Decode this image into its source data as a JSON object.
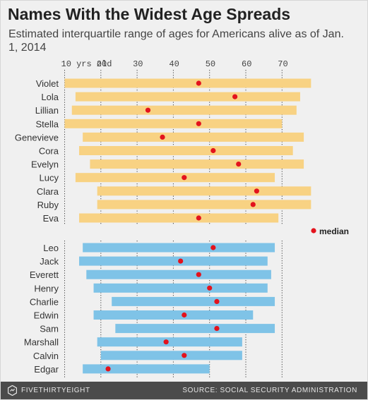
{
  "title": "Names With the Widest Age Spreads",
  "subtitle": "Estimated interquartile range of ages for Americans alive as of Jan. 1, 2014",
  "footer": {
    "brand": "FIVETHIRTYEIGHT",
    "brand_icon": "fivethirtyeight-logo-icon",
    "source": "SOURCE: SOCIAL SECURITY ADMINISTRATION"
  },
  "chart_data": {
    "type": "range-dot",
    "title": "Names With the Widest Age Spreads",
    "subtitle": "Estimated interquartile range of ages for Americans alive as of Jan. 1, 2014",
    "x_unit": "yrs old",
    "xlim": [
      10,
      78
    ],
    "ticks": [
      10,
      20,
      30,
      40,
      50,
      60,
      70
    ],
    "tick_labels": [
      "10 yrs old",
      "20",
      "30",
      "40",
      "50",
      "60",
      "70"
    ],
    "grid": "vertical dotted",
    "legend": {
      "label": "median",
      "placement": "right, between groups"
    },
    "colors": {
      "female_bar": "#f8d283",
      "male_bar": "#7fc3e7",
      "median": "#e3131d",
      "grid": "#444444"
    },
    "series": [
      {
        "group": "female",
        "items": [
          {
            "name": "Violet",
            "q1": 10,
            "q3": 78,
            "median": 47
          },
          {
            "name": "Lola",
            "q1": 13,
            "q3": 75,
            "median": 57
          },
          {
            "name": "Lillian",
            "q1": 12,
            "q3": 74,
            "median": 33
          },
          {
            "name": "Stella",
            "q1": 10,
            "q3": 70,
            "median": 47
          },
          {
            "name": "Genevieve",
            "q1": 15,
            "q3": 76,
            "median": 37
          },
          {
            "name": "Cora",
            "q1": 14,
            "q3": 73,
            "median": 51
          },
          {
            "name": "Evelyn",
            "q1": 17,
            "q3": 76,
            "median": 58
          },
          {
            "name": "Lucy",
            "q1": 13,
            "q3": 68,
            "median": 43
          },
          {
            "name": "Clara",
            "q1": 19,
            "q3": 78,
            "median": 63
          },
          {
            "name": "Ruby",
            "q1": 19,
            "q3": 78,
            "median": 62
          },
          {
            "name": "Eva",
            "q1": 14,
            "q3": 69,
            "median": 47
          }
        ]
      },
      {
        "group": "male",
        "items": [
          {
            "name": "Leo",
            "q1": 15,
            "q3": 68,
            "median": 51
          },
          {
            "name": "Jack",
            "q1": 14,
            "q3": 66,
            "median": 42
          },
          {
            "name": "Everett",
            "q1": 16,
            "q3": 67,
            "median": 47
          },
          {
            "name": "Henry",
            "q1": 18,
            "q3": 66,
            "median": 50
          },
          {
            "name": "Charlie",
            "q1": 23,
            "q3": 68,
            "median": 52
          },
          {
            "name": "Edwin",
            "q1": 18,
            "q3": 62,
            "median": 43
          },
          {
            "name": "Sam",
            "q1": 24,
            "q3": 68,
            "median": 52
          },
          {
            "name": "Marshall",
            "q1": 19,
            "q3": 59,
            "median": 38
          },
          {
            "name": "Calvin",
            "q1": 20,
            "q3": 59,
            "median": 43
          },
          {
            "name": "Edgar",
            "q1": 15,
            "q3": 50,
            "median": 22
          }
        ]
      }
    ]
  }
}
